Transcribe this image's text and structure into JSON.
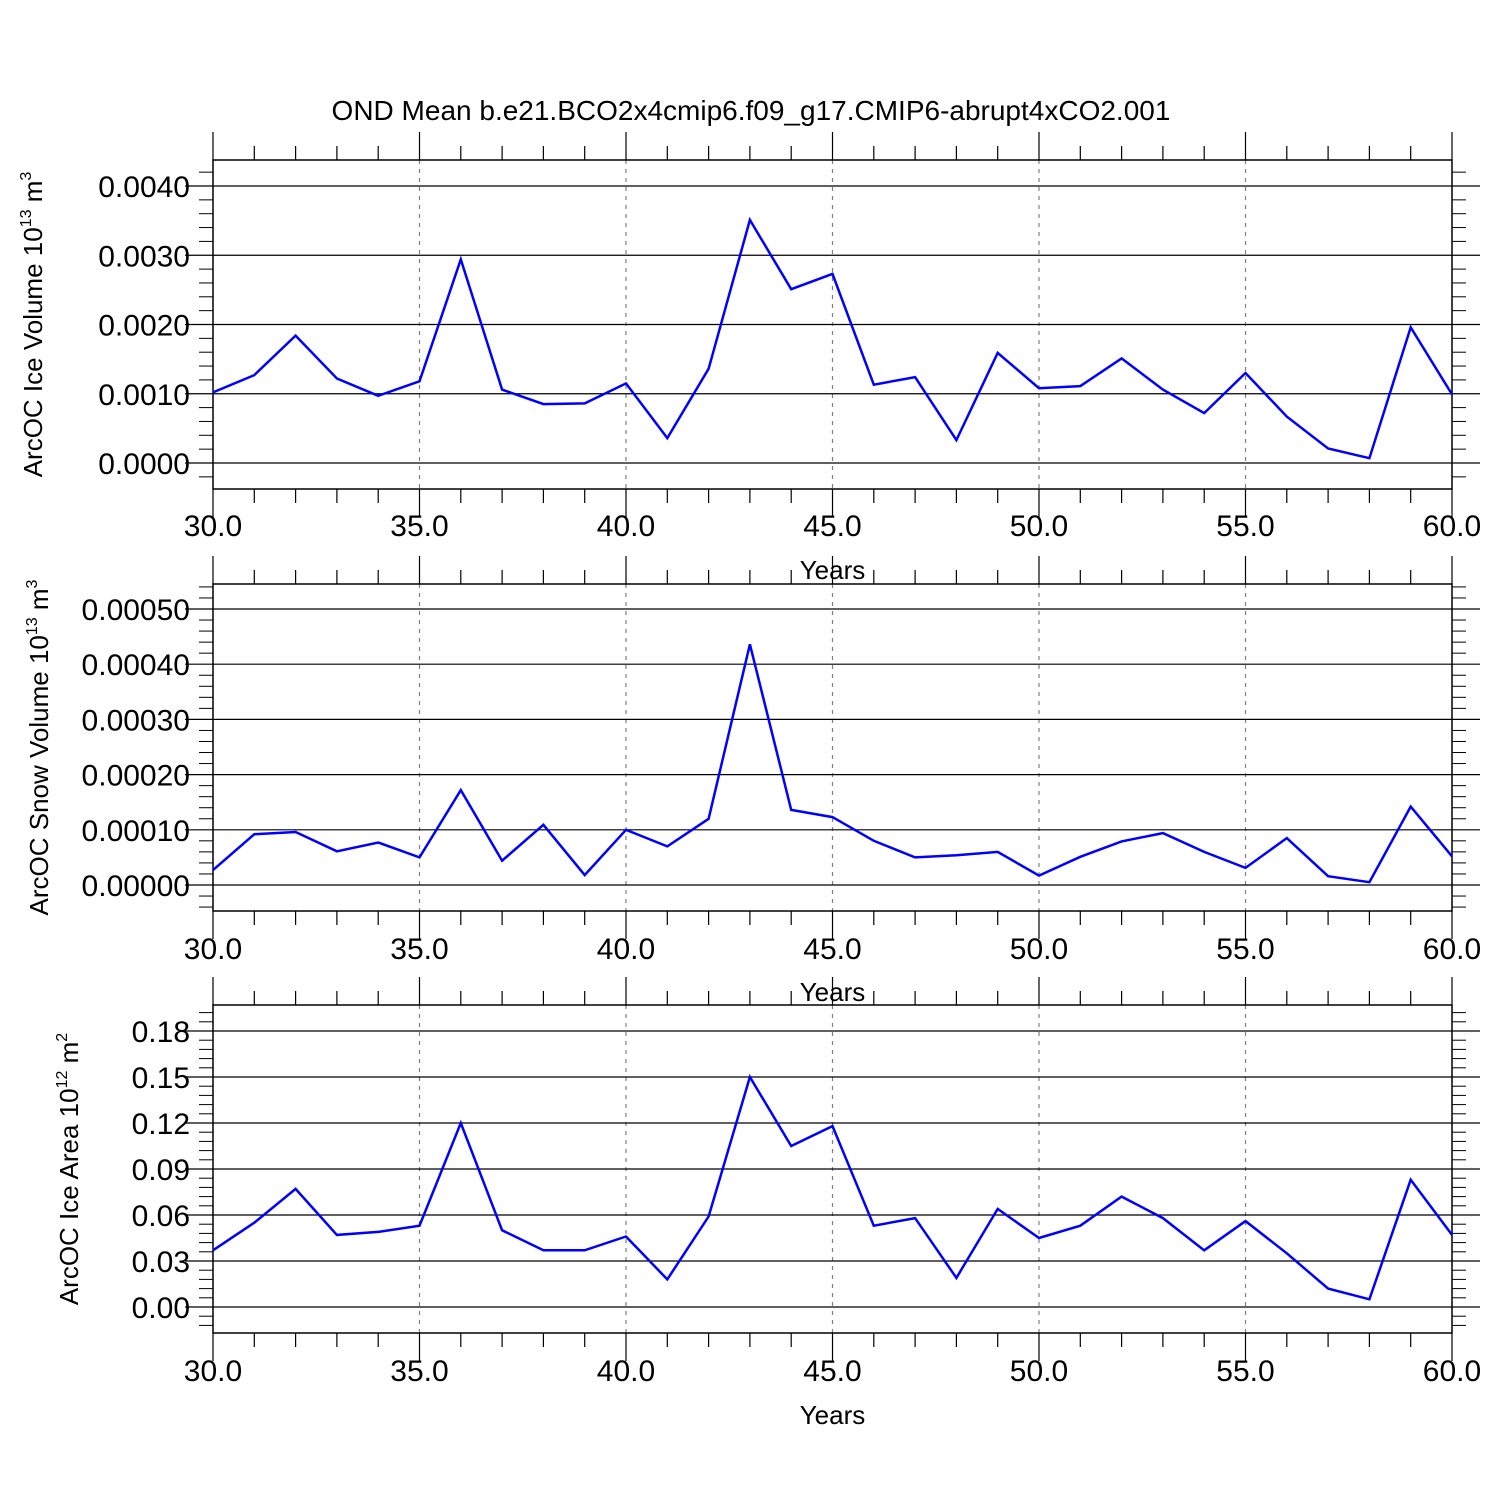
{
  "title": "OND Mean b.e21.BCO2x4cmip6.f09_g17.CMIP6-abrupt4xCO2.001",
  "colors": {
    "line": "#0000ff",
    "axis": "#000000",
    "grid": "#808080"
  },
  "chart_data": [
    {
      "type": "line",
      "xlabel": "Years",
      "ylabel_text": "ArcOC Ice Volume 10",
      "ylabel_exp": "13",
      "ylabel_unit": " m",
      "ylabel_unit_exp": "3",
      "xlim": [
        30,
        60
      ],
      "ylim": [
        0,
        0.004
      ],
      "x_ticks": [
        30,
        35,
        40,
        45,
        50,
        55,
        60
      ],
      "x_tick_labels": [
        "30.0",
        "35.0",
        "40.0",
        "45.0",
        "50.0",
        "55.0",
        "60.0"
      ],
      "y_ticks": [
        0,
        0.001,
        0.002,
        0.003,
        0.004
      ],
      "y_tick_labels": [
        "0.0000",
        "0.0010",
        "0.0020",
        "0.0030",
        "0.0040"
      ],
      "x_grid": [
        35,
        40,
        45,
        50,
        55
      ],
      "series": [
        {
          "x": [
            30,
            31,
            32,
            33,
            34,
            35,
            36,
            37,
            38,
            39,
            40,
            41,
            42,
            43,
            44,
            45,
            46,
            47,
            48,
            49,
            50,
            51,
            52,
            53,
            54,
            55,
            56,
            57,
            58,
            59,
            60
          ],
          "values": [
            0.00102,
            0.00127,
            0.00184,
            0.00122,
            0.00097,
            0.00118,
            0.00294,
            0.00106,
            0.00085,
            0.00086,
            0.00115,
            0.00036,
            0.00136,
            0.00351,
            0.00251,
            0.00273,
            0.00113,
            0.00124,
            0.00033,
            0.00159,
            0.00108,
            0.00111,
            0.00151,
            0.00106,
            0.00072,
            0.0013,
            0.00067,
            0.00021,
            7e-05,
            0.00196,
            0.00099
          ]
        }
      ]
    },
    {
      "type": "line",
      "xlabel": "Years",
      "ylabel_text": "ArcOC Snow Volume 10",
      "ylabel_exp": "13",
      "ylabel_unit": " m",
      "ylabel_unit_exp": "3",
      "xlim": [
        30,
        60
      ],
      "ylim": [
        0,
        0.0005
      ],
      "x_ticks": [
        30,
        35,
        40,
        45,
        50,
        55,
        60
      ],
      "x_tick_labels": [
        "30.0",
        "35.0",
        "40.0",
        "45.0",
        "50.0",
        "55.0",
        "60.0"
      ],
      "y_ticks": [
        0,
        0.0001,
        0.0002,
        0.0003,
        0.0004,
        0.0005
      ],
      "y_tick_labels": [
        "0.00000",
        "0.00010",
        "0.00020",
        "0.00030",
        "0.00040",
        "0.00050"
      ],
      "x_grid": [
        35,
        40,
        45,
        50,
        55
      ],
      "series": [
        {
          "x": [
            30,
            31,
            32,
            33,
            34,
            35,
            36,
            37,
            38,
            39,
            40,
            41,
            42,
            43,
            44,
            45,
            46,
            47,
            48,
            49,
            50,
            51,
            52,
            53,
            54,
            55,
            56,
            57,
            58,
            59,
            60
          ],
          "values": [
            2.7e-05,
            9.2e-05,
            9.6e-05,
            6.1e-05,
            7.7e-05,
            5e-05,
            0.000172,
            4.4e-05,
            0.000109,
            1.8e-05,
            0.0001,
            7e-05,
            0.00012,
            0.000436,
            0.000136,
            0.000123,
            8e-05,
            5e-05,
            5.4e-05,
            6e-05,
            1.7e-05,
            5.1e-05,
            7.9e-05,
            9.4e-05,
            6e-05,
            3.1e-05,
            8.5e-05,
            1.6e-05,
            5e-06,
            0.000142,
            5.2e-05
          ]
        }
      ]
    },
    {
      "type": "line",
      "xlabel": "Years",
      "ylabel_text": "ArcOC Ice Area 10",
      "ylabel_exp": "12",
      "ylabel_unit": " m",
      "ylabel_unit_exp": "2",
      "xlim": [
        30,
        60
      ],
      "ylim": [
        0,
        0.18
      ],
      "x_ticks": [
        30,
        35,
        40,
        45,
        50,
        55,
        60
      ],
      "x_tick_labels": [
        "30.0",
        "35.0",
        "40.0",
        "45.0",
        "50.0",
        "55.0",
        "60.0"
      ],
      "y_ticks": [
        0,
        0.03,
        0.06,
        0.09,
        0.12,
        0.15,
        0.18
      ],
      "y_tick_labels": [
        "0.00",
        "0.03",
        "0.06",
        "0.09",
        "0.12",
        "0.15",
        "0.18"
      ],
      "x_grid": [
        35,
        40,
        45,
        50,
        55
      ],
      "series": [
        {
          "x": [
            30,
            31,
            32,
            33,
            34,
            35,
            36,
            37,
            38,
            39,
            40,
            41,
            42,
            43,
            44,
            45,
            46,
            47,
            48,
            49,
            50,
            51,
            52,
            53,
            54,
            55,
            56,
            57,
            58,
            59,
            60
          ],
          "values": [
            0.037,
            0.055,
            0.077,
            0.047,
            0.049,
            0.053,
            0.12,
            0.05,
            0.037,
            0.037,
            0.046,
            0.018,
            0.059,
            0.15,
            0.105,
            0.118,
            0.053,
            0.058,
            0.019,
            0.064,
            0.045,
            0.053,
            0.072,
            0.058,
            0.037,
            0.056,
            0.035,
            0.012,
            0.005,
            0.083,
            0.047
          ]
        }
      ]
    }
  ]
}
